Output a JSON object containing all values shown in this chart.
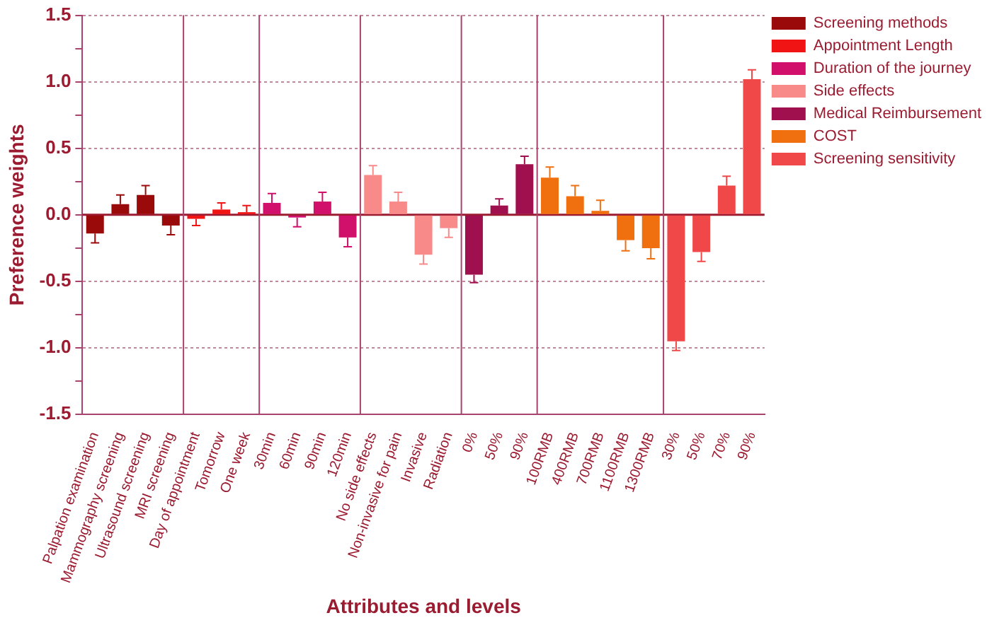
{
  "chart_data": {
    "type": "bar",
    "xlabel": "Attributes and levels",
    "ylabel": "Preference weights",
    "categories": [
      "Palpation examination",
      "Mammography screening",
      "Ultrasound screening",
      "MRI screening",
      "Day of appointment",
      "Tomorrow",
      "One week",
      "30min",
      "60min",
      "90min",
      "120min",
      "No side effects",
      "Non-invasive for pain",
      "Invasive",
      "Radiation",
      "0%",
      "50%",
      "90%",
      "100RMB",
      "400RMB",
      "700RMB",
      "1100RMB",
      "1300RMB",
      "30%",
      "50%",
      "70%",
      "90%"
    ],
    "series": [
      {
        "name": "Screening methods",
        "color": "#9b0a0a",
        "values": [
          -0.14,
          0.08,
          0.15,
          -0.08,
          null,
          null,
          null,
          null,
          null,
          null,
          null,
          null,
          null,
          null,
          null,
          null,
          null,
          null,
          null,
          null,
          null,
          null,
          null,
          null,
          null,
          null,
          null
        ],
        "errors": [
          0.07,
          0.07,
          0.07,
          0.07,
          null,
          null,
          null,
          null,
          null,
          null,
          null,
          null,
          null,
          null,
          null,
          null,
          null,
          null,
          null,
          null,
          null,
          null,
          null,
          null,
          null,
          null,
          null
        ]
      },
      {
        "name": "Appointment Length",
        "color": "#f01414",
        "values": [
          null,
          null,
          null,
          null,
          -0.03,
          0.04,
          0.02,
          null,
          null,
          null,
          null,
          null,
          null,
          null,
          null,
          null,
          null,
          null,
          null,
          null,
          null,
          null,
          null,
          null,
          null,
          null,
          null
        ],
        "errors": [
          null,
          null,
          null,
          null,
          0.05,
          0.05,
          0.05,
          null,
          null,
          null,
          null,
          null,
          null,
          null,
          null,
          null,
          null,
          null,
          null,
          null,
          null,
          null,
          null,
          null,
          null,
          null,
          null
        ]
      },
      {
        "name": "Duration of the journey",
        "color": "#d0106a",
        "values": [
          null,
          null,
          null,
          null,
          null,
          null,
          null,
          0.09,
          -0.02,
          0.1,
          -0.17,
          null,
          null,
          null,
          null,
          null,
          null,
          null,
          null,
          null,
          null,
          null,
          null,
          null,
          null,
          null,
          null
        ],
        "errors": [
          null,
          null,
          null,
          null,
          null,
          null,
          null,
          0.07,
          0.07,
          0.07,
          0.07,
          null,
          null,
          null,
          null,
          null,
          null,
          null,
          null,
          null,
          null,
          null,
          null,
          null,
          null,
          null,
          null
        ]
      },
      {
        "name": "Side effects",
        "color": "#f88a8a",
        "values": [
          null,
          null,
          null,
          null,
          null,
          null,
          null,
          null,
          null,
          null,
          null,
          0.3,
          0.1,
          -0.3,
          -0.1,
          null,
          null,
          null,
          null,
          null,
          null,
          null,
          null,
          null,
          null,
          null,
          null
        ],
        "errors": [
          null,
          null,
          null,
          null,
          null,
          null,
          null,
          null,
          null,
          null,
          null,
          0.07,
          0.07,
          0.07,
          0.07,
          null,
          null,
          null,
          null,
          null,
          null,
          null,
          null,
          null,
          null,
          null,
          null
        ]
      },
      {
        "name": "Medical Reimbursement",
        "color": "#a0104e",
        "values": [
          null,
          null,
          null,
          null,
          null,
          null,
          null,
          null,
          null,
          null,
          null,
          null,
          null,
          null,
          null,
          -0.45,
          0.07,
          0.38,
          null,
          null,
          null,
          null,
          null,
          null,
          null,
          null,
          null
        ],
        "errors": [
          null,
          null,
          null,
          null,
          null,
          null,
          null,
          null,
          null,
          null,
          null,
          null,
          null,
          null,
          null,
          0.06,
          0.05,
          0.06,
          null,
          null,
          null,
          null,
          null,
          null,
          null,
          null,
          null
        ]
      },
      {
        "name": "COST",
        "color": "#f07010",
        "values": [
          null,
          null,
          null,
          null,
          null,
          null,
          null,
          null,
          null,
          null,
          null,
          null,
          null,
          null,
          null,
          null,
          null,
          null,
          0.28,
          0.14,
          0.03,
          -0.19,
          -0.25,
          null,
          null,
          null,
          null
        ],
        "errors": [
          null,
          null,
          null,
          null,
          null,
          null,
          null,
          null,
          null,
          null,
          null,
          null,
          null,
          null,
          null,
          null,
          null,
          null,
          0.08,
          0.08,
          0.08,
          0.08,
          0.08,
          null,
          null,
          null,
          null
        ]
      },
      {
        "name": "Screening sensitivity",
        "color": "#f04848",
        "values": [
          null,
          null,
          null,
          null,
          null,
          null,
          null,
          null,
          null,
          null,
          null,
          null,
          null,
          null,
          null,
          null,
          null,
          null,
          null,
          null,
          null,
          null,
          null,
          -0.95,
          -0.28,
          0.22,
          1.02
        ],
        "errors": [
          null,
          null,
          null,
          null,
          null,
          null,
          null,
          null,
          null,
          null,
          null,
          null,
          null,
          null,
          null,
          null,
          null,
          null,
          null,
          null,
          null,
          null,
          null,
          0.07,
          0.07,
          0.07,
          0.07
        ]
      }
    ],
    "ylim": [
      -1.5,
      1.5
    ],
    "yticks": [
      {
        "value": -1.5,
        "label": "-1.5"
      },
      {
        "value": -1.25,
        "label": null
      },
      {
        "value": -1,
        "label": "-1.0"
      },
      {
        "value": -0.75,
        "label": null
      },
      {
        "value": -0.5,
        "label": "-0.5"
      },
      {
        "value": -0.25,
        "label": null
      },
      {
        "value": 0,
        "label": "0.0"
      },
      {
        "value": 0.25,
        "label": null
      },
      {
        "value": 0.5,
        "label": "0.5"
      },
      {
        "value": 0.75,
        "label": null
      },
      {
        "value": 1,
        "label": "1.0"
      },
      {
        "value": 1.25,
        "label": null
      },
      {
        "value": 1.5,
        "label": "1.5"
      }
    ],
    "ref_lines": [
      {
        "axis": "y",
        "value": 0,
        "color": "#9b1b30"
      }
    ],
    "grid": "y",
    "legend": "right"
  }
}
